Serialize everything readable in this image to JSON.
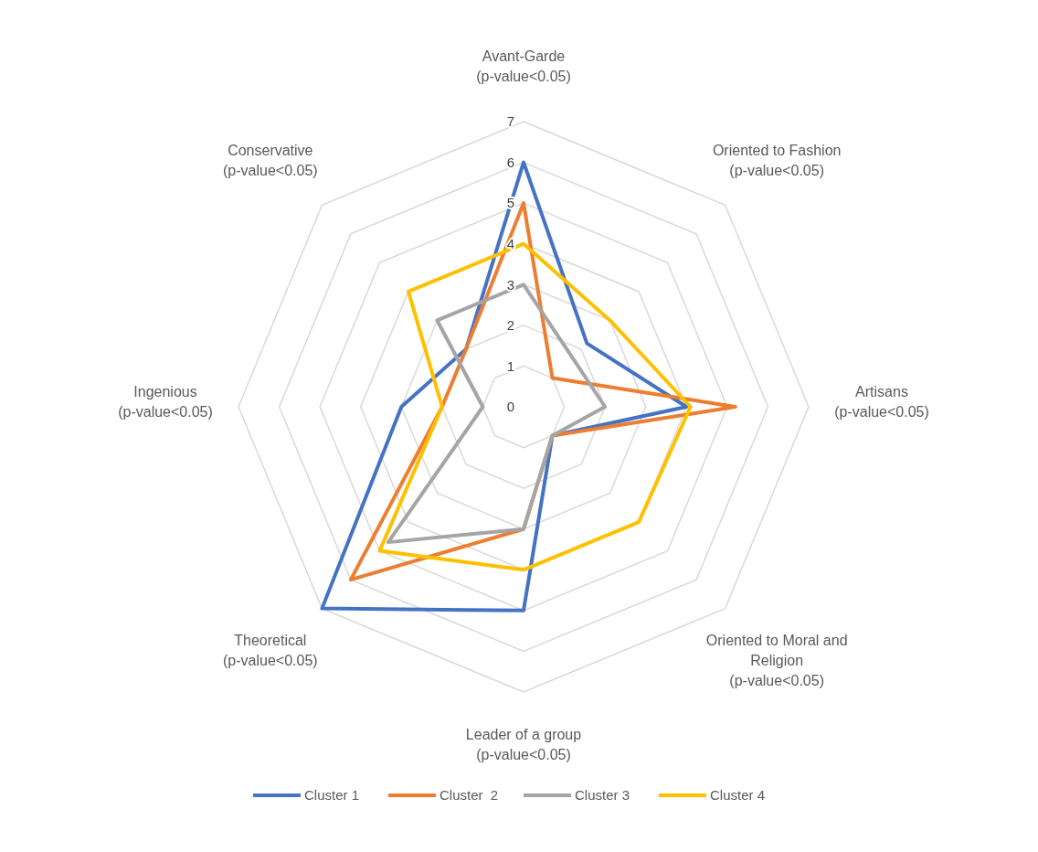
{
  "chart_data": {
    "type": "radar",
    "categories": [
      "Avant-Garde\n(p-value<0.05)",
      "Oriented to Fashion\n(p-value<0.05)",
      "Artisans\n(p-value<0.05)",
      "Oriented to Moral and\nReligion\n(p-value<0.05)",
      "Leader of a group\n(p-value<0.05)",
      "Theoretical\n(p-value<0.05)",
      "Ingenious\n(p-value<0.05)",
      "Conservative\n(p-value<0.05)"
    ],
    "series": [
      {
        "name": "Cluster 1",
        "color": "#4472c4",
        "values": [
          6,
          2.2,
          4,
          1,
          5,
          7,
          3,
          2
        ]
      },
      {
        "name": "Cluster  2",
        "color": "#ed7d31",
        "values": [
          5,
          1,
          5.2,
          1,
          3,
          6,
          2,
          2
        ]
      },
      {
        "name": "Cluster 3",
        "color": "#a5a5a5",
        "values": [
          3,
          1.7,
          2,
          1,
          3,
          4.7,
          1,
          3
        ]
      },
      {
        "name": "Cluster 4",
        "color": "#ffc000",
        "values": [
          4,
          3,
          4.1,
          4,
          4,
          5,
          2,
          4
        ]
      }
    ],
    "ylim": [
      0,
      7
    ],
    "yticks": [
      0,
      1,
      2,
      3,
      4,
      5,
      6,
      7
    ],
    "grid": true,
    "legend": "bottom",
    "marker": "none"
  }
}
